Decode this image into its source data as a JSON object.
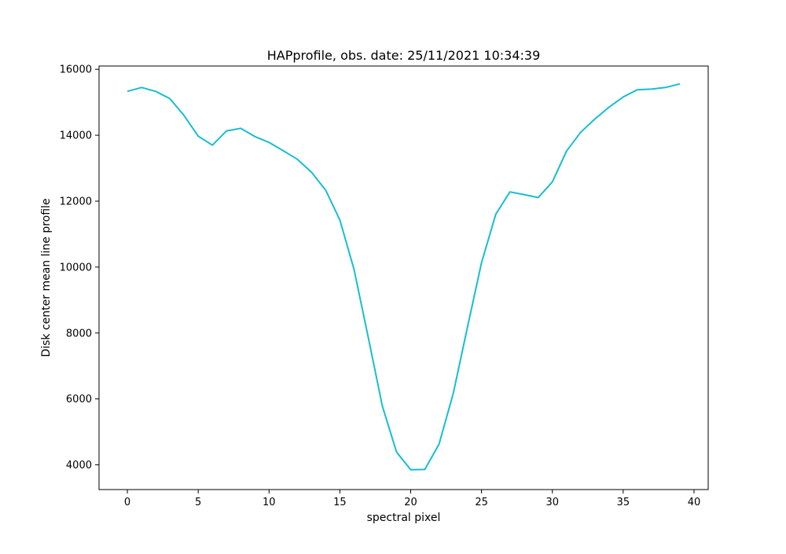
{
  "chart_data": {
    "type": "line",
    "title": "HAPprofile, obs. date: 25/11/2021 10:34:39",
    "xlabel": "spectral pixel",
    "ylabel": "Disk center mean line profile",
    "xlim": [
      -2,
      41
    ],
    "ylim": [
      3250,
      16100
    ],
    "xticks": [
      0,
      5,
      10,
      15,
      20,
      25,
      30,
      35,
      40
    ],
    "yticks": [
      4000,
      6000,
      8000,
      10000,
      12000,
      14000,
      16000
    ],
    "xtick_labels": [
      "0",
      "5",
      "10",
      "15",
      "20",
      "25",
      "30",
      "35",
      "40"
    ],
    "ytick_labels": [
      "4000",
      "6000",
      "8000",
      "10000",
      "12000",
      "14000",
      "16000"
    ],
    "grid": false,
    "line_color": "#17becf",
    "series": [
      {
        "x": [
          0,
          1,
          2,
          3,
          4,
          5,
          6,
          7,
          8,
          9,
          10,
          11,
          12,
          13,
          14,
          15,
          16,
          17,
          18,
          19,
          20,
          21,
          22,
          23,
          24,
          25,
          26,
          27,
          28,
          29,
          30,
          31,
          32,
          33,
          34,
          35,
          36,
          37,
          38,
          39
        ],
        "values": [
          15330,
          15450,
          15330,
          15110,
          14600,
          13970,
          13700,
          14130,
          14210,
          13960,
          13780,
          13530,
          13270,
          12880,
          12330,
          11430,
          9930,
          7880,
          5780,
          4390,
          3850,
          3860,
          4630,
          6160,
          8160,
          10130,
          11600,
          12280,
          12200,
          12110,
          12580,
          13520,
          14090,
          14490,
          14850,
          15160,
          15380,
          15400,
          15450,
          15560
        ]
      }
    ]
  }
}
